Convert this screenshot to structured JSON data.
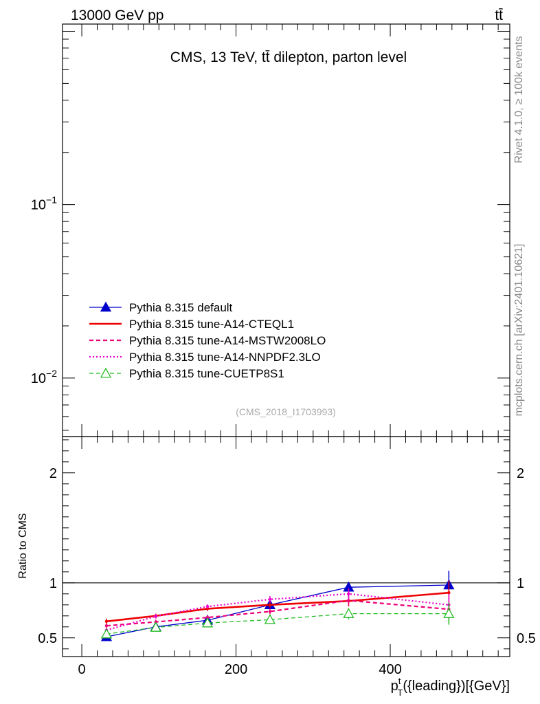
{
  "header": {
    "left": "13000 GeV pp",
    "right": "tt̄"
  },
  "side": {
    "rivet": "Rivet 4.1.0, ≥ 100k events",
    "mcplots": "mcplots.cern.ch [arXiv:2401.10621]"
  },
  "main_plot": {
    "title": "CMS, 13 TeV, tt̄ dilepton, parton level",
    "watermark": "(CMS_2018_I1703993)",
    "ytick_labels": [
      {
        "base": "10",
        "exp": "−1",
        "value": 0.1
      },
      {
        "base": "10",
        "exp": "−2",
        "value": 0.01
      }
    ],
    "legend": [
      {
        "label": "Pythia 8.315 default",
        "color": "#0000cc",
        "style": "solid-triangle"
      },
      {
        "label": "Pythia 8.315 tune-A14-CTEQL1",
        "color": "#ee0000",
        "style": "solid-thick"
      },
      {
        "label": "Pythia 8.315 tune-A14-MSTW2008LO",
        "color": "#ee0077",
        "style": "dashed"
      },
      {
        "label": "Pythia 8.315 tune-A14-NNPDF2.3LO",
        "color": "#ee00cc",
        "style": "dotted"
      },
      {
        "label": "Pythia 8.315 tune-CUETP8S1",
        "color": "#22bb22",
        "style": "dashed-open-triangle"
      }
    ]
  },
  "axes": {
    "ylabel_ratio": "Ratio to CMS",
    "xlabel": {
      "p": "p",
      "sup": "t",
      "sub": "T",
      "rest": "({leading})[{GeV}]"
    }
  },
  "chart_data": {
    "type": "line",
    "title": "CMS, 13 TeV, tt̄ dilepton, parton level",
    "xlabel": "p_T^t({leading})[{GeV}]",
    "ylabel": "Ratio to CMS",
    "xlim": [
      -25,
      555
    ],
    "ylim_ratio": [
      0.33,
      2.33
    ],
    "ylim_main": [
      0.0046,
      1.1
    ],
    "x_ticks": [
      0,
      200,
      400
    ],
    "ratio_ticks": [
      0.5,
      1,
      2
    ],
    "x": [
      32,
      96,
      163,
      244,
      346,
      476
    ],
    "series": [
      {
        "name": "Pythia 8.315 default",
        "values": [
          0.51,
          0.6,
          0.66,
          0.8,
          0.96,
          0.98
        ],
        "errors": [
          0.02,
          0.015,
          0.015,
          0.025,
          0.05,
          0.13
        ]
      },
      {
        "name": "Pythia 8.315 tune-A14-CTEQL1",
        "values": [
          0.65,
          0.7,
          0.765,
          0.8,
          0.835,
          0.91
        ],
        "errors": [
          0.025,
          0.02,
          0.02,
          0.025,
          0.05,
          0.11
        ]
      },
      {
        "name": "Pythia 8.315 tune-A14-MSTW2008LO",
        "values": [
          0.61,
          0.645,
          0.685,
          0.74,
          0.84,
          0.76
        ],
        "errors": [
          0.02,
          0.02,
          0.02,
          0.025,
          0.05,
          0.1
        ]
      },
      {
        "name": "Pythia 8.315 tune-A14-NNPDF2.3LO",
        "values": [
          0.57,
          0.695,
          0.785,
          0.85,
          0.9,
          0.8
        ],
        "errors": [
          0.02,
          0.02,
          0.02,
          0.03,
          0.05,
          0.1
        ]
      },
      {
        "name": "Pythia 8.315 tune-CUETP8S1",
        "values": [
          0.535,
          0.595,
          0.635,
          0.665,
          0.72,
          0.72
        ],
        "errors": [
          0.02,
          0.015,
          0.02,
          0.025,
          0.05,
          0.1
        ]
      }
    ]
  }
}
